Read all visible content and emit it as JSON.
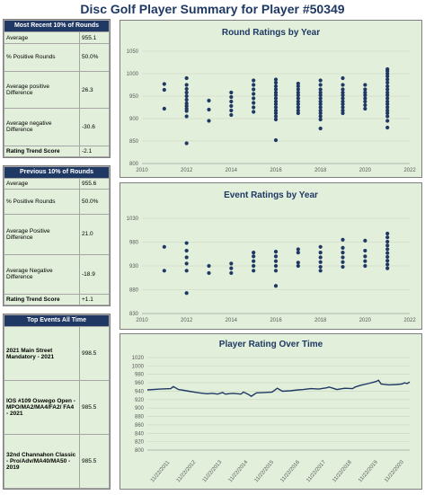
{
  "page": {
    "title": "Disc Golf Player Summary for Player #50349"
  },
  "recent": {
    "header": "Most Recent 10% of Rounds",
    "rows": [
      {
        "label": "Average",
        "value": "955.1"
      },
      {
        "label": "% Positive Rounds",
        "value": "50.0%"
      },
      {
        "label": "Average positive Difference",
        "value": "26.3"
      },
      {
        "label": "Average negative Difference",
        "value": "-30.6"
      },
      {
        "label": "Rating Trend Score",
        "value": "-2.1"
      }
    ]
  },
  "previous": {
    "header": "Previous 10% of Rounds",
    "rows": [
      {
        "label": "Average",
        "value": "955.6"
      },
      {
        "label": "% Positive Rounds",
        "value": "50.0%"
      },
      {
        "label": "Average Positive Difference",
        "value": "21.0"
      },
      {
        "label": "Average Negative Difference",
        "value": "-18.9"
      },
      {
        "label": "Rating Trend Score",
        "value": "+1.1"
      }
    ]
  },
  "top_events": {
    "header": "Top Events All Time",
    "rows": [
      {
        "label": "2021 Main Street Mandatory - 2021",
        "value": "998.5"
      },
      {
        "label": "IOS #109 Oswego Open - MPO/MA2/MA4/FA2/ FA4 - 2021",
        "value": "985.5"
      },
      {
        "label": "32nd Channahon Classic - Pro/Adv/MA40/MA50 - 2019",
        "value": "985.5"
      }
    ]
  },
  "chart_data": [
    {
      "type": "scatter",
      "title": "Round Ratings by Year",
      "xlim": [
        2010,
        2022
      ],
      "ylim": [
        800,
        1050
      ],
      "xticks": [
        2010,
        2012,
        2014,
        2016,
        2018,
        2020,
        2022
      ],
      "yticks": [
        800,
        850,
        900,
        950,
        1000,
        1050
      ],
      "marker_color": "#1f3864",
      "series": [
        {
          "x": 2011,
          "values": [
            922,
            964,
            977
          ]
        },
        {
          "x": 2012,
          "values": [
            845,
            905,
            917,
            922,
            928,
            934,
            942,
            950,
            958,
            966,
            975,
            990
          ]
        },
        {
          "x": 2013,
          "values": [
            895,
            920,
            940
          ]
        },
        {
          "x": 2014,
          "values": [
            908,
            918,
            928,
            938,
            948,
            958
          ]
        },
        {
          "x": 2015,
          "values": [
            915,
            925,
            935,
            945,
            955,
            965,
            975,
            985
          ]
        },
        {
          "x": 2016,
          "values": [
            852,
            898,
            905,
            912,
            918,
            925,
            932,
            938,
            945,
            952,
            958,
            965,
            972,
            980,
            987
          ]
        },
        {
          "x": 2017,
          "values": [
            912,
            918,
            925,
            932,
            938,
            945,
            952,
            958,
            965,
            972,
            978
          ]
        },
        {
          "x": 2018,
          "values": [
            878,
            898,
            905,
            912,
            918,
            925,
            932,
            938,
            945,
            952,
            958,
            965,
            975,
            985
          ]
        },
        {
          "x": 2019,
          "values": [
            912,
            918,
            925,
            932,
            938,
            945,
            952,
            958,
            965,
            975,
            990
          ]
        },
        {
          "x": 2020,
          "values": [
            922,
            930,
            938,
            945,
            952,
            958,
            965,
            975
          ]
        },
        {
          "x": 2021,
          "values": [
            880,
            895,
            905,
            912,
            918,
            925,
            932,
            938,
            945,
            952,
            958,
            965,
            972,
            980,
            987,
            994,
            1000,
            1006,
            1010
          ]
        }
      ]
    },
    {
      "type": "scatter",
      "title": "Event Ratings by Year",
      "xlim": [
        2010,
        2022
      ],
      "ylim": [
        830,
        1030
      ],
      "xticks": [
        2010,
        2012,
        2014,
        2016,
        2018,
        2020,
        2022
      ],
      "yticks": [
        830,
        880,
        930,
        980,
        1030
      ],
      "marker_color": "#1f3864",
      "series": [
        {
          "x": 2011,
          "values": [
            920,
            970
          ]
        },
        {
          "x": 2012,
          "values": [
            873,
            920,
            935,
            948,
            962,
            978
          ]
        },
        {
          "x": 2013,
          "values": [
            915,
            930
          ]
        },
        {
          "x": 2014,
          "values": [
            915,
            925,
            935
          ]
        },
        {
          "x": 2015,
          "values": [
            920,
            930,
            940,
            950,
            958
          ]
        },
        {
          "x": 2016,
          "values": [
            888,
            920,
            930,
            940,
            950,
            960
          ]
        },
        {
          "x": 2017,
          "values": [
            930,
            937,
            958,
            965
          ]
        },
        {
          "x": 2018,
          "values": [
            920,
            928,
            938,
            948,
            958,
            970
          ]
        },
        {
          "x": 2019,
          "values": [
            928,
            938,
            948,
            958,
            968,
            985
          ]
        },
        {
          "x": 2020,
          "values": [
            930,
            940,
            950,
            962,
            983
          ]
        },
        {
          "x": 2021,
          "values": [
            925,
            933,
            941,
            949,
            957,
            965,
            973,
            981,
            990,
            998
          ]
        }
      ]
    },
    {
      "type": "line",
      "title": "Player Rating Over Time",
      "ylim": [
        800,
        1020
      ],
      "yticks": [
        800,
        820,
        840,
        860,
        880,
        900,
        920,
        940,
        960,
        980,
        1000,
        1020
      ],
      "xticks": [
        "11/22/2011",
        "11/22/2012",
        "11/22/2013",
        "11/22/2014",
        "11/22/2015",
        "11/22/2016",
        "11/22/2017",
        "11/22/2018",
        "11/22/2019",
        "11/22/2020"
      ],
      "xlim": [
        2011.0,
        2021.1
      ],
      "line_color": "#1f3864",
      "series": [
        {
          "x": [
            2011.0,
            2011.5,
            2011.9,
            2012.0,
            2012.2,
            2012.4,
            2012.6,
            2012.8,
            2013.0,
            2013.3,
            2013.5,
            2013.7,
            2013.9,
            2014.0,
            2014.3,
            2014.6,
            2014.7,
            2014.9,
            2015.0,
            2015.2,
            2015.5,
            2015.8,
            2016.0,
            2016.2,
            2016.5,
            2016.8,
            2017.0,
            2017.3,
            2017.6,
            2017.9,
            2018.0,
            2018.3,
            2018.6,
            2018.9,
            2019.0,
            2019.2,
            2019.5,
            2019.8,
            2019.9,
            2020.0,
            2020.3,
            2020.6,
            2020.8,
            2020.9,
            2021.0,
            2021.1
          ],
          "values": [
            943,
            945,
            946,
            951,
            944,
            942,
            940,
            938,
            936,
            934,
            935,
            933,
            937,
            933,
            935,
            933,
            938,
            932,
            928,
            936,
            937,
            938,
            947,
            940,
            941,
            943,
            944,
            946,
            945,
            948,
            950,
            944,
            947,
            946,
            950,
            954,
            958,
            963,
            966,
            957,
            955,
            956,
            957,
            960,
            958,
            962
          ]
        }
      ]
    }
  ]
}
